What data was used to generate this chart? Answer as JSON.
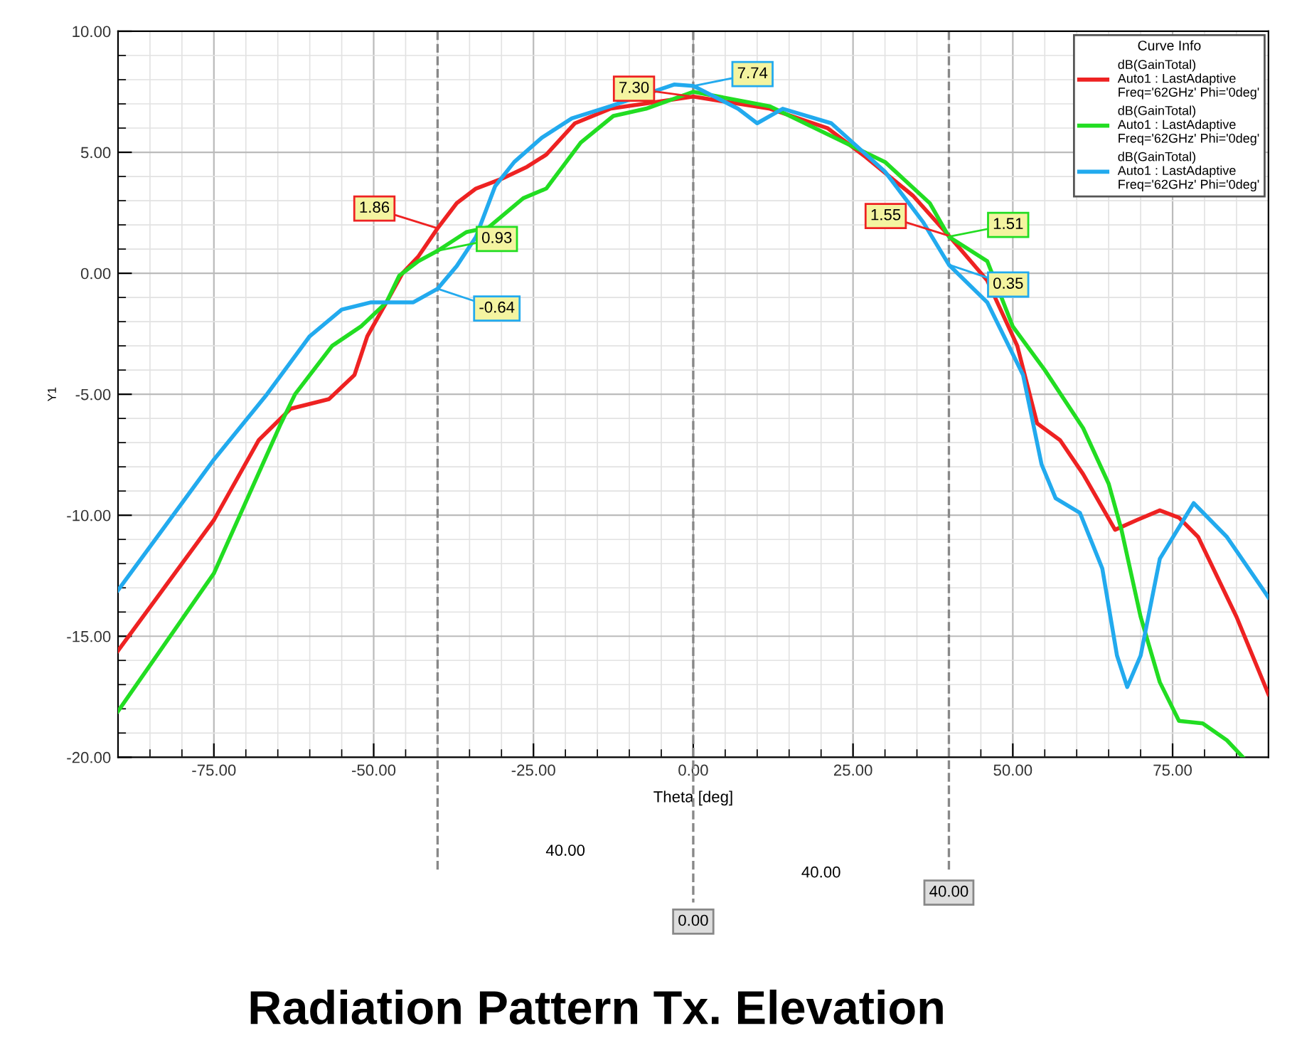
{
  "chart_data": {
    "type": "line",
    "title": "Radiation Pattern Tx. Elevation",
    "xlabel": "Theta [deg]",
    "ylabel": "Y1",
    "legend_title": "Curve Info",
    "xlim": [
      -90,
      90
    ],
    "ylim": [
      -20,
      10
    ],
    "xticks": [
      {
        "value": -75,
        "label": "-75.00"
      },
      {
        "value": -50,
        "label": "-50.00"
      },
      {
        "value": -25,
        "label": "-25.00"
      },
      {
        "value": 0,
        "label": "0.00"
      },
      {
        "value": 25,
        "label": "25.00"
      },
      {
        "value": 50,
        "label": "50.00"
      },
      {
        "value": 75,
        "label": "75.00"
      }
    ],
    "yticks": [
      {
        "value": -20,
        "label": "-20.00"
      },
      {
        "value": -15,
        "label": "-15.00"
      },
      {
        "value": -10,
        "label": "-10.00"
      },
      {
        "value": -5,
        "label": "-5.00"
      },
      {
        "value": 0,
        "label": "0.00"
      },
      {
        "value": 5,
        "label": "5.00"
      },
      {
        "value": 10,
        "label": "10.00"
      }
    ],
    "grid": true,
    "legend": "top right",
    "marker": "none",
    "line_style": "solid",
    "series": [
      {
        "name": "dB(GainTotal)\nAuto1 : LastAdaptive\nFreq='62GHz' Phi='0deg'",
        "color": "#ee2222",
        "x": [
          -90,
          -75,
          -68,
          -63,
          -57,
          -53,
          -51,
          -48,
          -45.5,
          -43,
          -40,
          -37,
          -34,
          -30,
          -26,
          -23,
          -18.5,
          -13,
          0,
          12,
          21,
          27,
          34.4,
          40,
          46,
          50.7,
          53.8,
          57.4,
          61,
          66,
          69.4,
          73,
          76,
          79,
          85,
          90
        ],
        "values": [
          -15.6,
          -10.2,
          -6.9,
          -5.6,
          -5.2,
          -4.2,
          -2.6,
          -1.2,
          0,
          0.7,
          1.86,
          2.9,
          3.5,
          3.9,
          4.4,
          4.9,
          6.2,
          6.8,
          7.3,
          6.8,
          6.0,
          4.8,
          3.2,
          1.55,
          -0.3,
          -3.0,
          -6.2,
          -6.9,
          -8.3,
          -10.6,
          -10.2,
          -9.8,
          -10.1,
          -10.9,
          -14.2,
          -17.4
        ]
      },
      {
        "name": "dB(GainTotal)\nAuto1 : LastAdaptive\nFreq='62GHz' Phi='0deg'",
        "color": "#22dd22",
        "x": [
          -90,
          -75,
          -64.5,
          -62.3,
          -56.5,
          -52,
          -48,
          -46,
          -43,
          -40,
          -35.5,
          -32,
          -26.6,
          -23,
          -17.6,
          -12.5,
          -7.4,
          0,
          12,
          30,
          37,
          40,
          46,
          50,
          55,
          61,
          65,
          67,
          70,
          73,
          76,
          79.7,
          83.5,
          86
        ],
        "values": [
          -18.1,
          -12.4,
          -6.2,
          -5.0,
          -3.0,
          -2.2,
          -1.2,
          -0.1,
          0.5,
          0.93,
          1.7,
          1.9,
          3.1,
          3.5,
          5.4,
          6.5,
          6.8,
          7.5,
          6.9,
          4.6,
          2.9,
          1.51,
          0.5,
          -2.2,
          -4.0,
          -6.4,
          -8.7,
          -10.6,
          -14.2,
          -16.9,
          -18.5,
          -18.6,
          -19.3,
          -20
        ]
      },
      {
        "name": "dB(GainTotal)\nAuto1 : LastAdaptive\nFreq='62GHz' Phi='0deg'",
        "color": "#22aaee",
        "x": [
          -90,
          -75,
          -66.7,
          -60,
          -55,
          -50.4,
          -43.8,
          -40,
          -37,
          -34,
          -31,
          -28,
          -23.7,
          -19,
          -13,
          -3,
          0,
          7,
          10,
          14,
          21.6,
          30,
          36,
          40,
          46,
          51.6,
          54.5,
          56.7,
          60.5,
          64,
          66.3,
          67.9,
          70,
          73,
          78.3,
          83.5,
          90
        ],
        "values": [
          -13.1,
          -7.7,
          -5.0,
          -2.6,
          -1.5,
          -1.2,
          -1.2,
          -0.64,
          0.3,
          1.5,
          3.6,
          4.6,
          5.6,
          6.4,
          6.9,
          7.8,
          7.74,
          6.8,
          6.2,
          6.8,
          6.2,
          4.2,
          2.1,
          0.35,
          -1.2,
          -4.2,
          -7.9,
          -9.3,
          -9.9,
          -12.2,
          -15.8,
          -17.1,
          -15.8,
          -11.8,
          -9.5,
          -10.9,
          -13.4
        ]
      }
    ],
    "ref_lines": [
      {
        "axis": "x",
        "value": -40,
        "color": "#888888",
        "line_style": "dashed"
      },
      {
        "axis": "x",
        "value": 0,
        "label": "0.00",
        "color": "#888888",
        "line_style": "dashed"
      },
      {
        "axis": "x",
        "value": 40,
        "label": "40.00",
        "color": "#888888",
        "line_style": "dashed"
      }
    ],
    "annotations": [
      {
        "text": "1.86",
        "x": -40,
        "y": 1.86
      },
      {
        "text": "0.93",
        "x": -40,
        "y": 0.93
      },
      {
        "text": "-0.64",
        "x": -40,
        "y": -0.64
      },
      {
        "text": "7.30",
        "x": 0,
        "y": 7.3
      },
      {
        "text": "7.74",
        "x": 0,
        "y": 7.74
      },
      {
        "text": "1.55",
        "x": 40,
        "y": 1.55
      },
      {
        "text": "1.51",
        "x": 40,
        "y": 1.51
      },
      {
        "text": "0.35",
        "x": 40,
        "y": 0.35
      },
      "40.00",
      "40.00"
    ]
  }
}
